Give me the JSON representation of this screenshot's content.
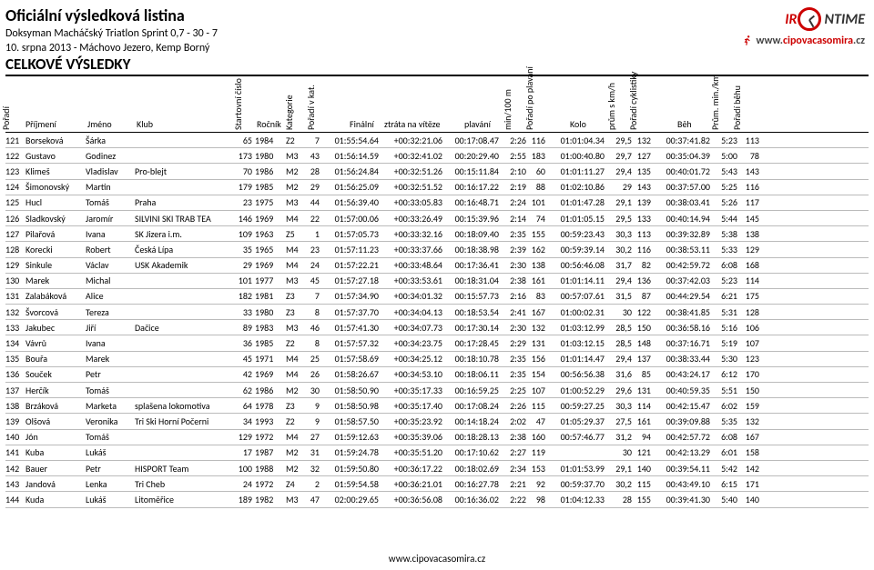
{
  "header": {
    "main_title": "Oficiální výsledková listina",
    "event_name": "Doksyman Macháčský Triatlon Sprint 0,7 - 30 - 7",
    "event_meta": "10. srpna 2013 - Máchovo Jezero, Kemp Borný",
    "section_label": "CELKOVÉ VÝSLEDKY",
    "logo_irontime_prefix": "IR",
    "logo_irontime_middle": "(",
    "logo_irontime_suffix": "NTIME",
    "logo_cipova_prefix": "www.",
    "logo_cipova_red": "cipovacasomira",
    "logo_cipova_suffix": ".cz"
  },
  "columns": {
    "poradi": "Pořadí",
    "prijmeni": "Příjmení",
    "jmeno": "Jméno",
    "klub": "Klub",
    "start_cislo": "Startovní číslo",
    "rocnik": "Ročník",
    "kategorie": "Kategorie",
    "poradi_v_kat": "Pořadí v kat.",
    "finalni": "Finální",
    "ztrata": "ztráta na vítěze",
    "plavani": "plavání",
    "min100m": "min/100 m",
    "poradi_plavani": "Pořadí po plavání",
    "kolo": "Kolo",
    "kmh": "prům s km/h",
    "poradi_cykl": "Pořadí cyklistiky",
    "beh": "Běh",
    "min_km": "Prům. min./km",
    "poradi_behu": "Pořadí běhu"
  },
  "rows": [
    {
      "por": "121",
      "prij": "Borseková",
      "jm": "Šárka",
      "klub": "",
      "sc": "65",
      "roc": "1984",
      "kat": "Z2",
      "pvk": "7",
      "fin": "01:55:54.64",
      "ztr": "+00:32:21.06",
      "plav": "00:17:08.47",
      "m100": "2:26",
      "ppl": "116",
      "kolo": "01:01:04.34",
      "kmh": "29,5",
      "pcy": "132",
      "beh": "00:37:41.82",
      "mkm": "5:23",
      "pbh": "113"
    },
    {
      "por": "122",
      "prij": "Gustavo",
      "jm": "Godinez",
      "klub": "",
      "sc": "173",
      "roc": "1980",
      "kat": "M3",
      "pvk": "43",
      "fin": "01:56:14.59",
      "ztr": "+00:32:41.02",
      "plav": "00:20:29.40",
      "m100": "2:55",
      "ppl": "183",
      "kolo": "01:00:40.80",
      "kmh": "29,7",
      "pcy": "127",
      "beh": "00:35:04.39",
      "mkm": "5:00",
      "pbh": "78"
    },
    {
      "por": "123",
      "prij": "Klimeš",
      "jm": "Vladislav",
      "klub": "Pro-blejt",
      "sc": "70",
      "roc": "1986",
      "kat": "M2",
      "pvk": "28",
      "fin": "01:56:24.84",
      "ztr": "+00:32:51.26",
      "plav": "00:15:11.84",
      "m100": "2:10",
      "ppl": "60",
      "kolo": "01:01:11.27",
      "kmh": "29,4",
      "pcy": "135",
      "beh": "00:40:01.72",
      "mkm": "5:43",
      "pbh": "143"
    },
    {
      "por": "124",
      "prij": "Šimonovský",
      "jm": "Martin",
      "klub": "",
      "sc": "179",
      "roc": "1985",
      "kat": "M2",
      "pvk": "29",
      "fin": "01:56:25.09",
      "ztr": "+00:32:51.52",
      "plav": "00:16:17.22",
      "m100": "2:19",
      "ppl": "88",
      "kolo": "01:02:10.86",
      "kmh": "29",
      "pcy": "143",
      "beh": "00:37:57.00",
      "mkm": "5:25",
      "pbh": "116"
    },
    {
      "por": "125",
      "prij": "Hucl",
      "jm": "Tomáš",
      "klub": "Praha",
      "sc": "23",
      "roc": "1975",
      "kat": "M3",
      "pvk": "44",
      "fin": "01:56:39.40",
      "ztr": "+00:33:05.83",
      "plav": "00:16:48.71",
      "m100": "2:24",
      "ppl": "101",
      "kolo": "01:01:47.28",
      "kmh": "29,1",
      "pcy": "139",
      "beh": "00:38:03.41",
      "mkm": "5:26",
      "pbh": "117"
    },
    {
      "por": "126",
      "prij": "Sladkovský",
      "jm": "Jaromír",
      "klub": "SILVINI SKI TRAB TEA",
      "sc": "146",
      "roc": "1969",
      "kat": "M4",
      "pvk": "22",
      "fin": "01:57:00.06",
      "ztr": "+00:33:26.49",
      "plav": "00:15:39.96",
      "m100": "2:14",
      "ppl": "74",
      "kolo": "01:01:05.15",
      "kmh": "29,5",
      "pcy": "133",
      "beh": "00:40:14.94",
      "mkm": "5:44",
      "pbh": "145"
    },
    {
      "por": "127",
      "prij": "Pilařová",
      "jm": "Ivana",
      "klub": "SK Jizera i.m.",
      "sc": "109",
      "roc": "1963",
      "kat": "Z5",
      "pvk": "1",
      "fin": "01:57:05.73",
      "ztr": "+00:33:32.16",
      "plav": "00:18:09.40",
      "m100": "2:35",
      "ppl": "155",
      "kolo": "00:59:23.43",
      "kmh": "30,3",
      "pcy": "113",
      "beh": "00:39:32.89",
      "mkm": "5:38",
      "pbh": "138"
    },
    {
      "por": "128",
      "prij": "Korecki",
      "jm": "Robert",
      "klub": "Česká Lípa",
      "sc": "35",
      "roc": "1965",
      "kat": "M4",
      "pvk": "23",
      "fin": "01:57:11.23",
      "ztr": "+00:33:37.66",
      "plav": "00:18:38.98",
      "m100": "2:39",
      "ppl": "162",
      "kolo": "00:59:39.14",
      "kmh": "30,2",
      "pcy": "116",
      "beh": "00:38:53.11",
      "mkm": "5:33",
      "pbh": "129"
    },
    {
      "por": "129",
      "prij": "Sinkule",
      "jm": "Václav",
      "klub": "USK Akademik",
      "sc": "29",
      "roc": "1969",
      "kat": "M4",
      "pvk": "24",
      "fin": "01:57:22.21",
      "ztr": "+00:33:48.64",
      "plav": "00:17:36.41",
      "m100": "2:30",
      "ppl": "138",
      "kolo": "00:56:46.08",
      "kmh": "31,7",
      "pcy": "82",
      "beh": "00:42:59.72",
      "mkm": "6:08",
      "pbh": "168"
    },
    {
      "por": "130",
      "prij": "Marek",
      "jm": "Michal",
      "klub": "",
      "sc": "101",
      "roc": "1977",
      "kat": "M3",
      "pvk": "45",
      "fin": "01:57:27.18",
      "ztr": "+00:33:53.61",
      "plav": "00:18:31.04",
      "m100": "2:38",
      "ppl": "161",
      "kolo": "01:01:14.11",
      "kmh": "29,4",
      "pcy": "136",
      "beh": "00:37:42.03",
      "mkm": "5:23",
      "pbh": "114"
    },
    {
      "por": "131",
      "prij": "Zalabáková",
      "jm": "Alice",
      "klub": "",
      "sc": "182",
      "roc": "1981",
      "kat": "Z3",
      "pvk": "7",
      "fin": "01:57:34.90",
      "ztr": "+00:34:01.32",
      "plav": "00:15:57.73",
      "m100": "2:16",
      "ppl": "83",
      "kolo": "00:57:07.61",
      "kmh": "31,5",
      "pcy": "87",
      "beh": "00:44:29.54",
      "mkm": "6:21",
      "pbh": "175"
    },
    {
      "por": "132",
      "prij": "Švorcová",
      "jm": "Tereza",
      "klub": "",
      "sc": "33",
      "roc": "1980",
      "kat": "Z3",
      "pvk": "8",
      "fin": "01:57:37.70",
      "ztr": "+00:34:04.13",
      "plav": "00:18:53.54",
      "m100": "2:41",
      "ppl": "167",
      "kolo": "01:00:02.31",
      "kmh": "30",
      "pcy": "122",
      "beh": "00:38:41.85",
      "mkm": "5:31",
      "pbh": "128"
    },
    {
      "por": "133",
      "prij": "Jakubec",
      "jm": "Jiří",
      "klub": "Dačice",
      "sc": "89",
      "roc": "1983",
      "kat": "M3",
      "pvk": "46",
      "fin": "01:57:41.30",
      "ztr": "+00:34:07.73",
      "plav": "00:17:30.14",
      "m100": "2:30",
      "ppl": "132",
      "kolo": "01:03:12.99",
      "kmh": "28,5",
      "pcy": "150",
      "beh": "00:36:58.16",
      "mkm": "5:16",
      "pbh": "106"
    },
    {
      "por": "134",
      "prij": "Vávrů",
      "jm": "Ivana",
      "klub": "",
      "sc": "36",
      "roc": "1985",
      "kat": "Z2",
      "pvk": "8",
      "fin": "01:57:57.32",
      "ztr": "+00:34:23.75",
      "plav": "00:17:28.45",
      "m100": "2:29",
      "ppl": "131",
      "kolo": "01:03:12.15",
      "kmh": "28,5",
      "pcy": "148",
      "beh": "00:37:16.71",
      "mkm": "5:19",
      "pbh": "107"
    },
    {
      "por": "135",
      "prij": "Bouřa",
      "jm": "Marek",
      "klub": "",
      "sc": "45",
      "roc": "1971",
      "kat": "M4",
      "pvk": "25",
      "fin": "01:57:58.69",
      "ztr": "+00:34:25.12",
      "plav": "00:18:10.78",
      "m100": "2:35",
      "ppl": "156",
      "kolo": "01:01:14.47",
      "kmh": "29,4",
      "pcy": "137",
      "beh": "00:38:33.44",
      "mkm": "5:30",
      "pbh": "123"
    },
    {
      "por": "136",
      "prij": "Souček",
      "jm": "Petr",
      "klub": "",
      "sc": "42",
      "roc": "1969",
      "kat": "M4",
      "pvk": "26",
      "fin": "01:58:26.67",
      "ztr": "+00:34:53.10",
      "plav": "00:18:06.11",
      "m100": "2:35",
      "ppl": "154",
      "kolo": "00:56:56.38",
      "kmh": "31,6",
      "pcy": "85",
      "beh": "00:43:24.17",
      "mkm": "6:12",
      "pbh": "170"
    },
    {
      "por": "137",
      "prij": "Herčík",
      "jm": "Tomáš",
      "klub": "",
      "sc": "62",
      "roc": "1986",
      "kat": "M2",
      "pvk": "30",
      "fin": "01:58:50.90",
      "ztr": "+00:35:17.33",
      "plav": "00:16:59.25",
      "m100": "2:25",
      "ppl": "107",
      "kolo": "01:00:52.29",
      "kmh": "29,6",
      "pcy": "131",
      "beh": "00:40:59.35",
      "mkm": "5:51",
      "pbh": "150"
    },
    {
      "por": "138",
      "prij": "Brzáková",
      "jm": "Marketa",
      "klub": "splašena lokomotiva",
      "sc": "64",
      "roc": "1978",
      "kat": "Z3",
      "pvk": "9",
      "fin": "01:58:50.98",
      "ztr": "+00:35:17.40",
      "plav": "00:17:08.24",
      "m100": "2:26",
      "ppl": "115",
      "kolo": "00:59:27.25",
      "kmh": "30,3",
      "pcy": "114",
      "beh": "00:42:15.47",
      "mkm": "6:02",
      "pbh": "159"
    },
    {
      "por": "139",
      "prij": "Olšová",
      "jm": "Veronika",
      "klub": "Tri Ski Horní Počerni",
      "sc": "34",
      "roc": "1993",
      "kat": "Z2",
      "pvk": "9",
      "fin": "01:58:57.50",
      "ztr": "+00:35:23.92",
      "plav": "00:14:18.24",
      "m100": "2:02",
      "ppl": "47",
      "kolo": "01:05:29.37",
      "kmh": "27,5",
      "pcy": "161",
      "beh": "00:39:09.88",
      "mkm": "5:35",
      "pbh": "132"
    },
    {
      "por": "140",
      "prij": "Jón",
      "jm": "Tomáš",
      "klub": "",
      "sc": "129",
      "roc": "1972",
      "kat": "M4",
      "pvk": "27",
      "fin": "01:59:12.63",
      "ztr": "+00:35:39.06",
      "plav": "00:18:28.13",
      "m100": "2:38",
      "ppl": "160",
      "kolo": "00:57:46.77",
      "kmh": "31,2",
      "pcy": "94",
      "beh": "00:42:57.72",
      "mkm": "6:08",
      "pbh": "167"
    },
    {
      "por": "141",
      "prij": "Kuba",
      "jm": "Lukáš",
      "klub": "",
      "sc": "17",
      "roc": "1987",
      "kat": "M2",
      "pvk": "31",
      "fin": "01:59:24.78",
      "ztr": "+00:35:51.20",
      "plav": "00:17:10.62",
      "m100": "2:27",
      "ppl": "119",
      "kolo": "",
      "kmh": "30",
      "pcy": "121",
      "beh": "00:42:13.29",
      "mkm": "6:01",
      "pbh": "158"
    },
    {
      "por": "142",
      "prij": "Bauer",
      "jm": "Petr",
      "klub": "HISPORT Team",
      "sc": "100",
      "roc": "1988",
      "kat": "M2",
      "pvk": "32",
      "fin": "01:59:50.80",
      "ztr": "+00:36:17.22",
      "plav": "00:18:02.69",
      "m100": "2:34",
      "ppl": "153",
      "kolo": "01:01:53.99",
      "kmh": "29,1",
      "pcy": "140",
      "beh": "00:39:54.11",
      "mkm": "5:42",
      "pbh": "142"
    },
    {
      "por": "143",
      "prij": "Jandová",
      "jm": "Lenka",
      "klub": "Tri Cheb",
      "sc": "24",
      "roc": "1972",
      "kat": "Z4",
      "pvk": "2",
      "fin": "01:59:54.58",
      "ztr": "+00:36:21.01",
      "plav": "00:16:27.78",
      "m100": "2:21",
      "ppl": "92",
      "kolo": "00:59:37.70",
      "kmh": "30,2",
      "pcy": "115",
      "beh": "00:43:49.10",
      "mkm": "6:15",
      "pbh": "171"
    },
    {
      "por": "144",
      "prij": "Kuda",
      "jm": "Lukáš",
      "klub": "Litoměřice",
      "sc": "189",
      "roc": "1982",
      "kat": "M3",
      "pvk": "47",
      "fin": "02:00:29.65",
      "ztr": "+00:36:56.08",
      "plav": "00:16:36.02",
      "m100": "2:22",
      "ppl": "98",
      "kolo": "01:04:12.33",
      "kmh": "28",
      "pcy": "155",
      "beh": "00:39:41.30",
      "mkm": "5:40",
      "pbh": "140"
    }
  ],
  "footer": {
    "url": "www.cipovacasomira.cz"
  }
}
